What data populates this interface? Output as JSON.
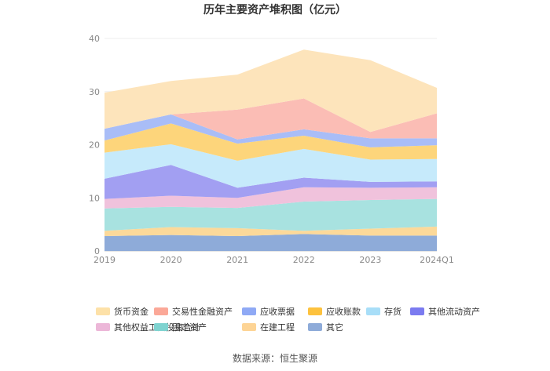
{
  "chart_data": {
    "type": "area",
    "title": "历年主要资产堆积图（亿元）",
    "source": "数据来源：恒生聚源",
    "categories": [
      "2019",
      "2020",
      "2021",
      "2022",
      "2023",
      "2024Q1"
    ],
    "ylim": [
      0,
      40
    ],
    "yticks": [
      "0",
      "10",
      "20",
      "30",
      "40"
    ],
    "grid": true,
    "stack": true,
    "legend_position": "bottom",
    "series": [
      {
        "name": "其它",
        "color": "#8eabd9",
        "values": [
          2.8,
          3.0,
          2.8,
          3.2,
          2.9,
          2.9
        ]
      },
      {
        "name": "在建工程",
        "color": "#fcd99a",
        "values": [
          1.0,
          1.5,
          1.5,
          0.6,
          1.3,
          1.7
        ]
      },
      {
        "name": "固定资产",
        "color": "#a8e2e0",
        "values": [
          4.2,
          3.8,
          3.8,
          5.5,
          5.4,
          5.2
        ]
      },
      {
        "name": "其他权益工具投资合计",
        "color": "#f0c2dc",
        "values": [
          1.8,
          2.1,
          1.9,
          2.7,
          2.3,
          2.2
        ]
      },
      {
        "name": "其他流动资产",
        "color": "#a29ff2",
        "values": [
          3.8,
          5.8,
          1.9,
          1.8,
          1.1,
          1.1
        ]
      },
      {
        "name": "存货",
        "color": "#c6eafb",
        "values": [
          4.9,
          3.9,
          5.1,
          5.4,
          4.2,
          4.2
        ]
      },
      {
        "name": "应收账款",
        "color": "#fdd57b",
        "values": [
          2.3,
          3.9,
          3.2,
          2.5,
          2.3,
          2.6
        ]
      },
      {
        "name": "应收票据",
        "color": "#a9bdf7",
        "values": [
          2.2,
          1.7,
          0.8,
          1.2,
          1.7,
          1.3
        ]
      },
      {
        "name": "交易性金融资产",
        "color": "#fbbdb5",
        "values": [
          0,
          0,
          5.6,
          5.8,
          1.2,
          4.7
        ]
      },
      {
        "name": "货币资金",
        "color": "#fde4bb",
        "values": [
          6.8,
          6.3,
          6.6,
          9.2,
          13.5,
          4.8
        ]
      }
    ],
    "legend_order": [
      "货币资金",
      "交易性金融资产",
      "应收票据",
      "应收账款",
      "存货",
      "其他流动资产",
      "其他权益工具投资合计",
      "固定资产",
      "在建工程",
      "其它"
    ],
    "legend_colors": {
      "货币资金": "#fde1a8",
      "交易性金融资产": "#fba898",
      "应收票据": "#8fa9f5",
      "应收账款": "#fdc23e",
      "存货": "#a8def8",
      "其他流动资产": "#7b7bf0",
      "其他权益工具投资合计": "#ecb7d8",
      "固定资产": "#7fd3d0",
      "在建工程": "#fdd495",
      "其它": "#8eabd9"
    }
  }
}
